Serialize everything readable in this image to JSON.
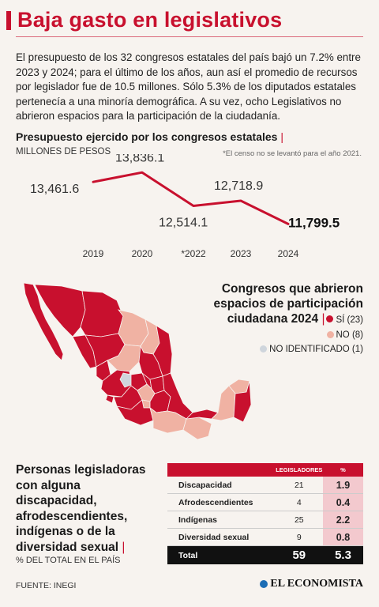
{
  "header": {
    "title": "Baja gasto en legislativos"
  },
  "intro": "El presupuesto de los 32 congresos estatales del país bajó un 7.2% entre 2023 y 2024; para el último de los años, aun así el promedio de recursos por legislador fue de 10.5 millones. Sólo 5.3% de los diputados estatales pertenecía a una minoría demográfica. A su vez, ocho Legislativos no abrieron espacios para la participación de la ciudadanía.",
  "budget_section": {
    "title": "Presupuesto ejercido por los congresos estatales",
    "unit": "MILLONES DE PESOS",
    "note": "*El censo no se levantó para el año 2021."
  },
  "chart_data": [
    {
      "type": "line",
      "title": "Presupuesto ejercido por los congresos estatales",
      "ylabel": "MILLONES DE PESOS",
      "categories": [
        "2019",
        "2020",
        "*2022",
        "2023",
        "2024"
      ],
      "series": [
        {
          "values": [
            13461.6,
            13836.1,
            12514.1,
            12718.9,
            11799.5
          ]
        }
      ],
      "value_labels": [
        "13,461.6",
        "13,836.1",
        "12,514.1",
        "12,718.9",
        "11,799.5"
      ],
      "color": "#c8102e"
    },
    {
      "type": "table",
      "title": "Personas legisladoras con alguna discapacidad, afrodescendientes, indígenas o de la diversidad sexual",
      "columns": [
        "LEGISLADORES",
        "%"
      ],
      "rows": [
        {
          "label": "Discapacidad",
          "legisladores": 21,
          "pct": 1.9
        },
        {
          "label": "Afrodescendientes",
          "legisladores": 4,
          "pct": 0.4
        },
        {
          "label": "Indígenas",
          "legisladores": 25,
          "pct": 2.2
        },
        {
          "label": "Diversidad sexual",
          "legisladores": 9,
          "pct": 0.8
        }
      ],
      "total": {
        "label": "Total",
        "legisladores": 59,
        "pct": 5.3
      }
    }
  ],
  "map_section": {
    "title_lines": [
      "Congresos que abrieron",
      "espacios de participación",
      "ciudadana 2024"
    ],
    "legend": [
      {
        "label": "SÍ (23)",
        "color": "#c8102e"
      },
      {
        "label": "NO (8)",
        "color": "#f0b2a3"
      },
      {
        "label": "NO IDENTIFICADO (1)",
        "color": "#cfd5dc"
      }
    ]
  },
  "table_section": {
    "title_lines": [
      "Personas legisladoras",
      "con alguna",
      "discapacidad,",
      "afrodescendientes,",
      "indígenas o de la",
      "diversidad sexual"
    ],
    "subtitle": "% DEL TOTAL EN EL PAÍS",
    "col_legisladores": "LEGISLADORES",
    "col_pct": "%",
    "rows": [
      {
        "label": "Discapacidad",
        "legisladores": "21",
        "pct": "1.9"
      },
      {
        "label": "Afrodescendientes",
        "legisladores": "4",
        "pct": "0.4"
      },
      {
        "label": "Indígenas",
        "legisladores": "25",
        "pct": "2.2"
      },
      {
        "label": "Diversidad sexual",
        "legisladores": "9",
        "pct": "0.8"
      }
    ],
    "total": {
      "label": "Total",
      "legisladores": "59",
      "pct": "5.3"
    }
  },
  "footer": {
    "source": "FUENTE: INEGI",
    "brand": "EL ECONOMISTA"
  },
  "colors": {
    "accent": "#c8102e",
    "no": "#f0b2a3",
    "unidentified": "#cfd5dc",
    "background": "#f7f3ef"
  }
}
